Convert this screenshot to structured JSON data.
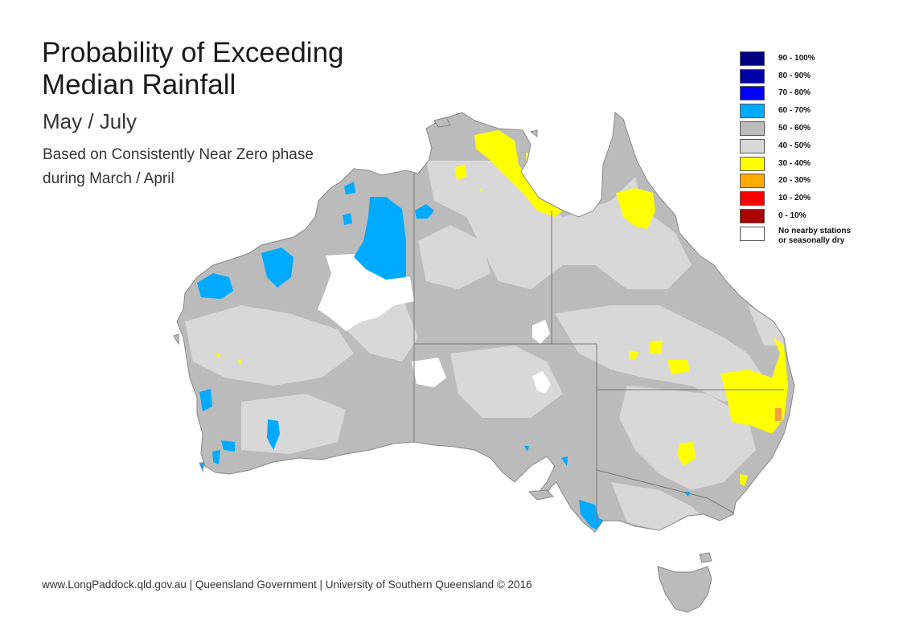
{
  "title_line1": "Probability of Exceeding",
  "title_line2": "Median Rainfall",
  "period": "May / July",
  "basis_line1": "Based on Consistently Near Zero phase",
  "basis_line2": "during March / April",
  "legend": [
    {
      "label": "90 - 100%",
      "color": "#000080"
    },
    {
      "label": "80 - 90%",
      "color": "#0000a8"
    },
    {
      "label": "70 - 80%",
      "color": "#0000ff"
    },
    {
      "label": "60 - 70%",
      "color": "#00aaff"
    },
    {
      "label": "50 - 60%",
      "color": "#bbbbbb"
    },
    {
      "label": "40 - 50%",
      "color": "#d8d8d8"
    },
    {
      "label": "30 - 40%",
      "color": "#ffff00"
    },
    {
      "label": "20 - 30%",
      "color": "#ffaa00"
    },
    {
      "label": "10 - 20%",
      "color": "#ff0000"
    },
    {
      "label": "0 - 10%",
      "color": "#aa0000"
    },
    {
      "label_line1": "No nearby stations",
      "label_line2": "or seasonally dry",
      "color": "#ffffff"
    }
  ],
  "footer": "www.LongPaddock.qld.gov.au | Queensland Government | University of Southern Queensland © 2016"
}
